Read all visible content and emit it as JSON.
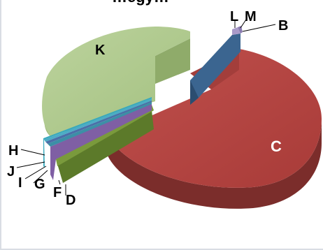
{
  "chart_data": {
    "type": "pie",
    "three_d": true,
    "exploded": true,
    "title": "…egy…",
    "legend": "none",
    "slices": [
      {
        "label": "B",
        "value": 3.0,
        "color": "#3b6590"
      },
      {
        "label": "C",
        "value": 53.0,
        "color": "#b64644"
      },
      {
        "label": "D",
        "value": 10.0,
        "color": "#7a9a3c"
      },
      {
        "label": "F",
        "value": 2.0,
        "color": "#7f5fa4"
      },
      {
        "label": "G",
        "value": 0.4,
        "color": "#3c8fa6"
      },
      {
        "label": "I",
        "value": 0.3,
        "color": "#4a6fa8"
      },
      {
        "label": "J",
        "value": 0.3,
        "color": "#4cacc6"
      },
      {
        "label": "H",
        "value": 1.0,
        "color": "#38a9bd"
      },
      {
        "label": "K",
        "value": 29.0,
        "color": "#afc98e"
      },
      {
        "label": "L",
        "value": 0.5,
        "color": "#a99ac9"
      },
      {
        "label": "M",
        "value": 0.5,
        "color": "#8a7bb0"
      }
    ]
  }
}
